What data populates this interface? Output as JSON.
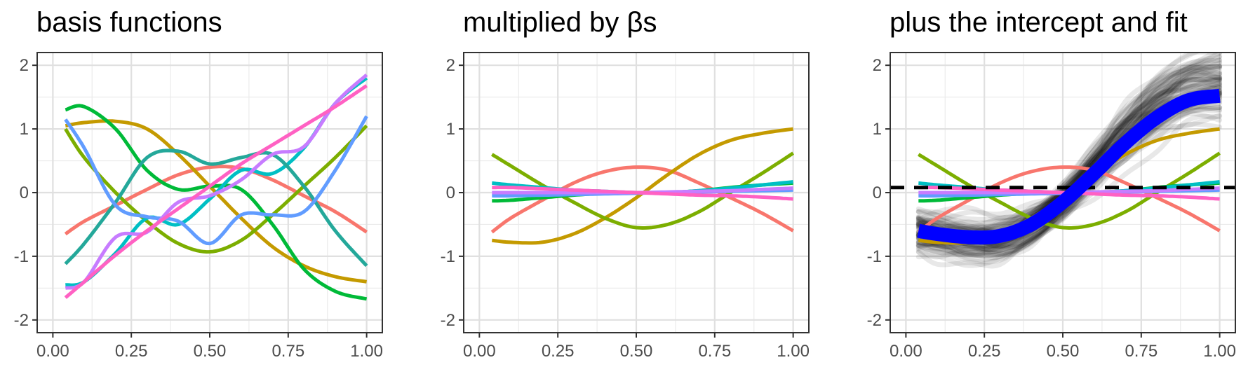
{
  "chart_data": [
    {
      "type": "line",
      "title": "basis functions",
      "xlim": [
        0,
        1
      ],
      "ylim": [
        -2.2,
        2.2
      ],
      "xticks": [
        "0.00",
        "0.25",
        "0.50",
        "0.75",
        "1.00"
      ],
      "yticks": [
        "-2",
        "-1",
        "0",
        "1",
        "2"
      ],
      "grid": true,
      "x": [
        0.04,
        0.1,
        0.2,
        0.3,
        0.4,
        0.5,
        0.6,
        0.7,
        0.8,
        0.9,
        1.0
      ],
      "series": [
        {
          "color": "#F8766D",
          "values": [
            -0.65,
            -0.45,
            -0.2,
            0.05,
            0.28,
            0.4,
            0.38,
            0.2,
            -0.05,
            -0.3,
            -0.62
          ]
        },
        {
          "color": "#C49A00",
          "values": [
            1.05,
            1.1,
            1.12,
            1.0,
            0.6,
            0.1,
            -0.4,
            -0.85,
            -1.15,
            -1.32,
            -1.4
          ]
        },
        {
          "color": "#7CAE00",
          "values": [
            1.0,
            0.55,
            0.0,
            -0.45,
            -0.8,
            -0.93,
            -0.75,
            -0.35,
            0.1,
            0.55,
            1.05
          ]
        },
        {
          "color": "#00BA38",
          "values": [
            1.3,
            1.35,
            1.0,
            0.35,
            0.05,
            0.1,
            0.05,
            -0.5,
            -1.2,
            -1.55,
            -1.67
          ]
        },
        {
          "color": "#00BFC4",
          "values": [
            -1.45,
            -1.4,
            -0.95,
            -0.4,
            -0.5,
            -0.1,
            0.35,
            0.3,
            0.7,
            1.4,
            1.8
          ]
        },
        {
          "color": "#24A89A",
          "values": [
            -1.12,
            -0.8,
            -0.15,
            0.55,
            0.65,
            0.45,
            0.55,
            0.6,
            0.1,
            -0.6,
            -1.15
          ]
        },
        {
          "color": "#619CFF",
          "values": [
            1.15,
            0.7,
            -0.2,
            -0.38,
            -0.45,
            -0.8,
            -0.35,
            -0.35,
            -0.3,
            0.35,
            1.2
          ]
        },
        {
          "color": "#C77CFF",
          "values": [
            -1.5,
            -1.4,
            -0.7,
            -0.62,
            -0.15,
            -0.05,
            0.2,
            0.6,
            0.72,
            1.4,
            1.85
          ]
        },
        {
          "color": "#FF61C3",
          "values": [
            -1.65,
            -1.4,
            -0.98,
            -0.6,
            -0.25,
            0.1,
            0.45,
            0.75,
            1.05,
            1.35,
            1.68
          ]
        }
      ]
    },
    {
      "type": "line",
      "title": "multiplied by βs",
      "xlim": [
        0,
        1
      ],
      "ylim": [
        -2.2,
        2.2
      ],
      "xticks": [
        "0.00",
        "0.25",
        "0.50",
        "0.75",
        "1.00"
      ],
      "yticks": [
        "-2",
        "-1",
        "0",
        "1",
        "2"
      ],
      "grid": true,
      "x": [
        0.04,
        0.1,
        0.2,
        0.3,
        0.4,
        0.5,
        0.6,
        0.7,
        0.8,
        0.9,
        1.0
      ],
      "series": [
        {
          "color": "#F8766D",
          "values": [
            -0.62,
            -0.4,
            -0.12,
            0.15,
            0.33,
            0.4,
            0.35,
            0.15,
            -0.08,
            -0.32,
            -0.6
          ]
        },
        {
          "color": "#C49A00",
          "values": [
            -0.75,
            -0.78,
            -0.78,
            -0.65,
            -0.4,
            -0.08,
            0.28,
            0.6,
            0.82,
            0.93,
            1.0
          ]
        },
        {
          "color": "#7CAE00",
          "values": [
            0.6,
            0.42,
            0.12,
            -0.15,
            -0.4,
            -0.55,
            -0.5,
            -0.3,
            0.0,
            0.3,
            0.62
          ]
        },
        {
          "color": "#00BA38",
          "values": [
            -0.13,
            -0.12,
            -0.08,
            -0.04,
            -0.01,
            0.0,
            0.0,
            0.03,
            0.08,
            0.12,
            0.15
          ]
        },
        {
          "color": "#00BFC4",
          "values": [
            0.15,
            0.12,
            0.08,
            0.04,
            0.02,
            0.0,
            0.0,
            0.03,
            0.07,
            0.12,
            0.17
          ]
        },
        {
          "color": "#619CFF",
          "values": [
            -0.05,
            -0.05,
            -0.04,
            -0.03,
            -0.02,
            -0.01,
            0.0,
            0.01,
            0.02,
            0.03,
            0.04
          ]
        },
        {
          "color": "#C77CFF",
          "values": [
            0.0,
            0.0,
            0.0,
            0.0,
            0.0,
            0.0,
            0.01,
            0.02,
            0.03,
            0.05,
            0.07
          ]
        },
        {
          "color": "#FF61C3",
          "values": [
            0.08,
            0.08,
            0.06,
            0.04,
            0.02,
            0.0,
            -0.02,
            -0.04,
            -0.05,
            -0.07,
            -0.1
          ]
        }
      ]
    },
    {
      "type": "line",
      "title": "plus the intercept and fit",
      "xlim": [
        0,
        1
      ],
      "ylim": [
        -2.2,
        2.2
      ],
      "xticks": [
        "0.00",
        "0.25",
        "0.50",
        "0.75",
        "1.00"
      ],
      "yticks": [
        "-2",
        "-1",
        "0",
        "1",
        "2"
      ],
      "grid": true,
      "intercept": 0.08,
      "x": [
        0.04,
        0.1,
        0.2,
        0.3,
        0.4,
        0.5,
        0.6,
        0.7,
        0.8,
        0.9,
        1.0
      ],
      "fit": {
        "color": "#0000FF",
        "values": [
          -0.6,
          -0.65,
          -0.7,
          -0.68,
          -0.5,
          -0.15,
          0.3,
          0.78,
          1.18,
          1.45,
          1.52
        ]
      },
      "posterior_draws_color": "#000000",
      "series": [
        {
          "color": "#F8766D",
          "values": [
            -0.62,
            -0.4,
            -0.12,
            0.15,
            0.33,
            0.4,
            0.35,
            0.15,
            -0.08,
            -0.32,
            -0.6
          ]
        },
        {
          "color": "#C49A00",
          "values": [
            -0.75,
            -0.78,
            -0.78,
            -0.65,
            -0.4,
            -0.08,
            0.28,
            0.6,
            0.82,
            0.93,
            1.0
          ]
        },
        {
          "color": "#7CAE00",
          "values": [
            0.6,
            0.42,
            0.12,
            -0.15,
            -0.4,
            -0.55,
            -0.5,
            -0.3,
            0.0,
            0.3,
            0.62
          ]
        },
        {
          "color": "#00BA38",
          "values": [
            -0.13,
            -0.12,
            -0.08,
            -0.04,
            -0.01,
            0.0,
            0.0,
            0.03,
            0.08,
            0.12,
            0.15
          ]
        },
        {
          "color": "#00BFC4",
          "values": [
            0.15,
            0.12,
            0.08,
            0.04,
            0.02,
            0.0,
            0.0,
            0.03,
            0.07,
            0.12,
            0.17
          ]
        },
        {
          "color": "#619CFF",
          "values": [
            -0.05,
            -0.05,
            -0.04,
            -0.03,
            -0.02,
            -0.01,
            0.0,
            0.01,
            0.02,
            0.03,
            0.04
          ]
        },
        {
          "color": "#C77CFF",
          "values": [
            0.0,
            0.0,
            0.0,
            0.0,
            0.0,
            0.0,
            0.01,
            0.02,
            0.03,
            0.05,
            0.07
          ]
        },
        {
          "color": "#FF61C3",
          "values": [
            0.08,
            0.08,
            0.06,
            0.04,
            0.02,
            0.0,
            -0.02,
            -0.04,
            -0.05,
            -0.07,
            -0.1
          ]
        }
      ]
    }
  ]
}
